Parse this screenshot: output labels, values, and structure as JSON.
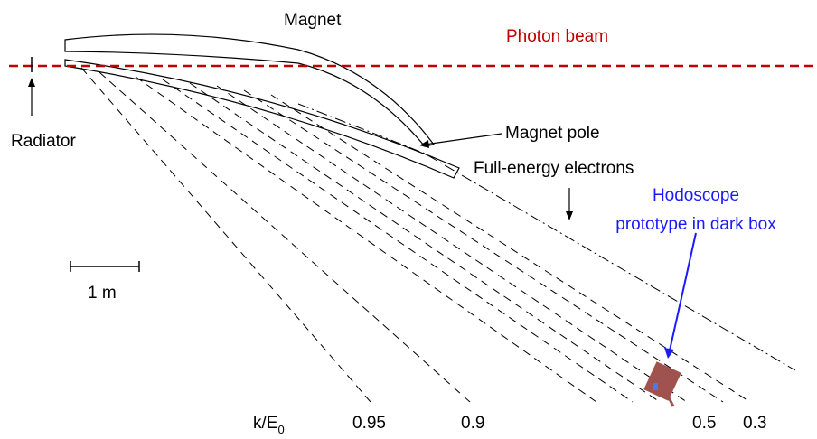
{
  "labels": {
    "magnet": "Magnet",
    "photon_beam": "Photon beam",
    "radiator": "Radiator",
    "magnet_pole": "Magnet pole",
    "full_energy_electrons": "Full-energy electrons",
    "hodoscope": [
      "Hodoscope",
      "prototype in dark box"
    ],
    "scale": "1 m",
    "axis": {
      "text": "k/E",
      "subscript": "0"
    },
    "ticks": [
      "0.95",
      "0.9",
      "0.5",
      "0.3"
    ]
  }
}
